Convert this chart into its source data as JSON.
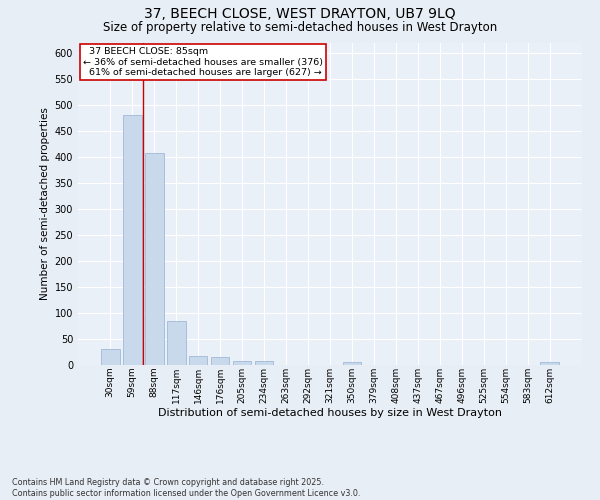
{
  "title1": "37, BEECH CLOSE, WEST DRAYTON, UB7 9LQ",
  "title2": "Size of property relative to semi-detached houses in West Drayton",
  "xlabel": "Distribution of semi-detached houses by size in West Drayton",
  "ylabel": "Number of semi-detached properties",
  "categories": [
    "30sqm",
    "59sqm",
    "88sqm",
    "117sqm",
    "146sqm",
    "176sqm",
    "205sqm",
    "234sqm",
    "263sqm",
    "292sqm",
    "321sqm",
    "350sqm",
    "379sqm",
    "408sqm",
    "437sqm",
    "467sqm",
    "496sqm",
    "525sqm",
    "554sqm",
    "583sqm",
    "612sqm"
  ],
  "values": [
    30,
    480,
    408,
    85,
    18,
    15,
    7,
    8,
    0,
    0,
    0,
    5,
    0,
    0,
    0,
    0,
    0,
    0,
    0,
    0,
    5
  ],
  "bar_color": "#c9d9ec",
  "bar_edge_color": "#a0b8d8",
  "marker_label": "37 BEECH CLOSE: 85sqm",
  "marker_smaller_pct": "36%",
  "marker_smaller_count": 376,
  "marker_larger_pct": "61%",
  "marker_larger_count": 627,
  "marker_line_color": "#cc0000",
  "annotation_box_color": "#cc0000",
  "ylim": [
    0,
    620
  ],
  "yticks": [
    0,
    50,
    100,
    150,
    200,
    250,
    300,
    350,
    400,
    450,
    500,
    550,
    600
  ],
  "footer": "Contains HM Land Registry data © Crown copyright and database right 2025.\nContains public sector information licensed under the Open Government Licence v3.0.",
  "bg_color": "#e8eef5",
  "plot_bg_color": "#eaf0f8",
  "grid_color": "#ffffff",
  "title1_fontsize": 10,
  "title2_fontsize": 8.5,
  "xlabel_fontsize": 8,
  "ylabel_fontsize": 7.5
}
